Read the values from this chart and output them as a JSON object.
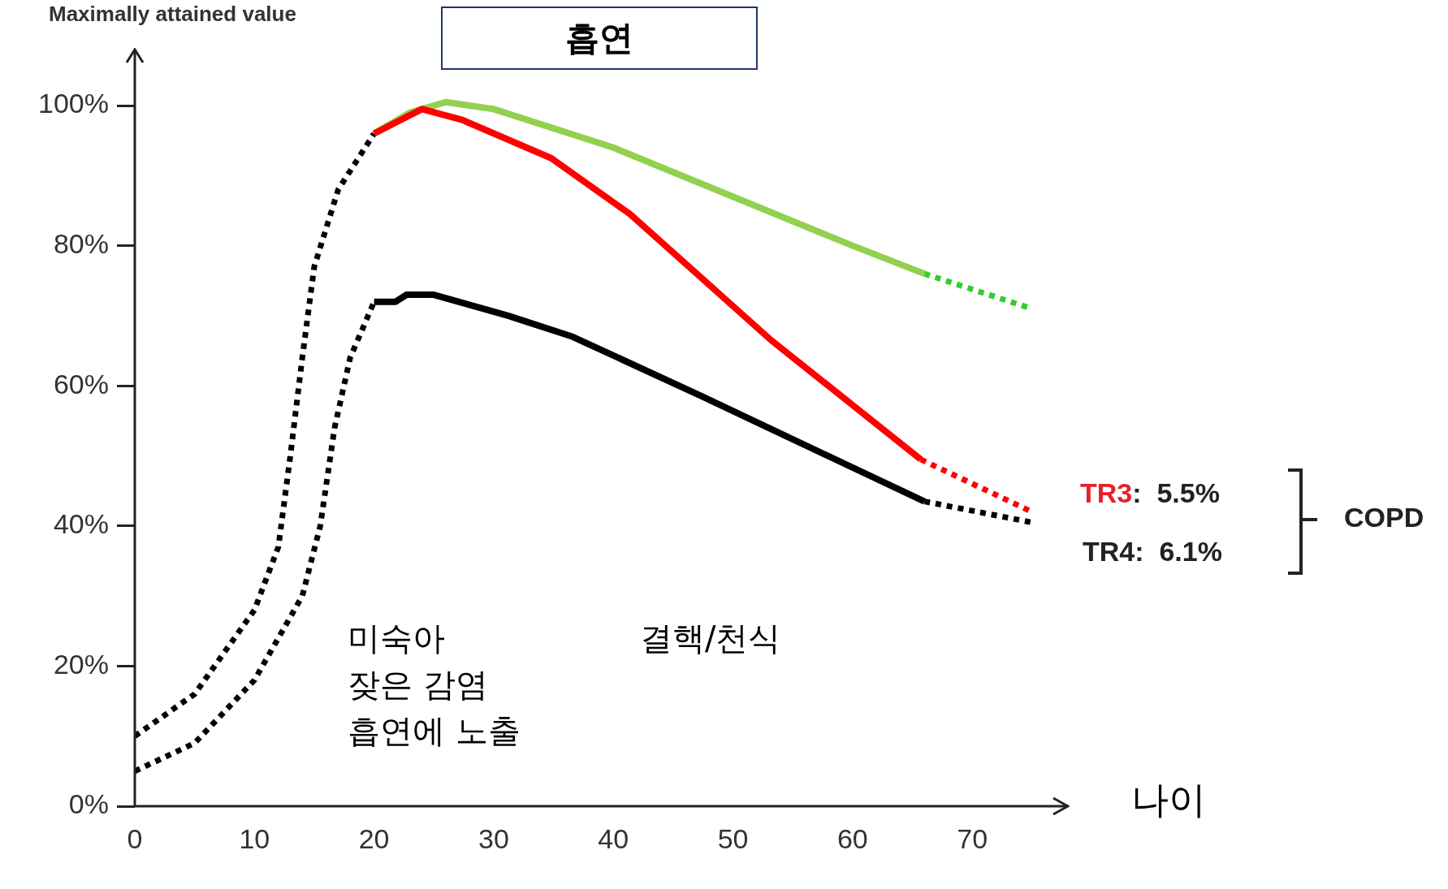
{
  "chart_data": {
    "type": "line",
    "title": "흡연",
    "ylabel": "Maximally attained value",
    "xlabel": "나이",
    "xlim": [
      0,
      78
    ],
    "xticks": [
      0,
      10,
      20,
      30,
      40,
      50,
      60,
      70
    ],
    "ylim": [
      0,
      108
    ],
    "yticks": [
      {
        "value": 0,
        "label": "0%"
      },
      {
        "value": 20,
        "label": "20%"
      },
      {
        "value": 40,
        "label": "40%"
      },
      {
        "value": 60,
        "label": "60%"
      },
      {
        "value": 80,
        "label": "80%"
      },
      {
        "value": 100,
        "label": "100%"
      }
    ],
    "grid": false,
    "legend": false,
    "marker": "none",
    "series": [
      {
        "color": "#000000",
        "line_style": "dotted",
        "x": [
          0,
          5,
          10,
          12,
          13,
          14,
          15,
          17,
          20
        ],
        "values": [
          10,
          16,
          28,
          37,
          50,
          64,
          77,
          88,
          96
        ]
      },
      {
        "color": "#000000",
        "line_style": "dotted",
        "x": [
          0,
          5,
          10,
          14,
          15.5,
          16.7,
          18,
          20
        ],
        "values": [
          5,
          9,
          18,
          30,
          40,
          54,
          64,
          72
        ]
      },
      {
        "color": "#92d050",
        "line_style": "solid",
        "x": [
          20,
          23,
          26,
          30,
          40,
          50,
          60,
          66
        ],
        "values": [
          96,
          99,
          100.5,
          99.5,
          94,
          87,
          80,
          76
        ]
      },
      {
        "color": "#33cc33",
        "line_style": "dotted",
        "x": [
          66,
          75
        ],
        "values": [
          76,
          71
        ]
      },
      {
        "color": "#ff0000",
        "line_style": "solid",
        "x": [
          20,
          24,
          27.3,
          34.8,
          41.4,
          53.2,
          65.7
        ],
        "values": [
          96,
          99.5,
          98,
          92.5,
          84.5,
          66.5,
          49.5
        ]
      },
      {
        "color": "#ff0000",
        "line_style": "dotted",
        "x": [
          65.7,
          75
        ],
        "values": [
          49.5,
          42
        ]
      },
      {
        "color": "#000000",
        "line_style": "solid",
        "x": [
          20,
          21.8,
          22.7,
          25,
          31.2,
          36.6,
          47.4,
          66
        ],
        "values": [
          72,
          72,
          73,
          73,
          70,
          67,
          58.5,
          43.5
        ]
      },
      {
        "color": "#000000",
        "line_style": "dotted",
        "x": [
          66,
          75
        ],
        "values": [
          43.5,
          40.5
        ]
      }
    ],
    "annotations": [
      "미숙아\n잦은 감염\n흡연에 노출",
      "결핵/천식",
      "TR3:  5.5%",
      "TR4:  6.1%",
      "COPD"
    ]
  }
}
